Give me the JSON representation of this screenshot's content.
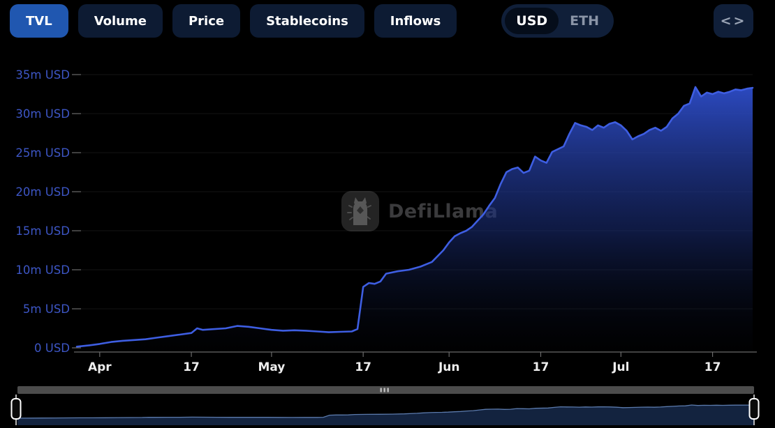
{
  "toolbar": {
    "tabs": [
      {
        "label": "TVL",
        "active": true
      },
      {
        "label": "Volume",
        "active": false
      },
      {
        "label": "Price",
        "active": false
      },
      {
        "label": "Stablecoins",
        "active": false
      },
      {
        "label": "Inflows",
        "active": false
      }
    ],
    "currency_toggle": {
      "options": [
        "USD",
        "ETH"
      ],
      "selected": "USD"
    },
    "embed_icon": "<>"
  },
  "watermark": {
    "text": "DefiLlama"
  },
  "colors": {
    "tab_active_bg": "#2057b0",
    "tab_bg": "#0d1b33",
    "toggle_bg": "#101f39",
    "toggle_selected_bg": "#050d1a",
    "line": "#3e5ee2",
    "area_top": "#2e4dc9",
    "area_bottom": "#05080f",
    "grid": "rgba(255,255,255,0.08)",
    "axis": "#6a6a6a",
    "y_label": "#3d56c5",
    "x_label": "#ededed",
    "nav_fill": "#13233f",
    "nav_line": "#5b7aac",
    "scrollbar": "#4c4c4c",
    "scrollbar_grip": "#bdbdbd",
    "handle": "#ffffff"
  },
  "chart_data": {
    "type": "area",
    "title": "TVL",
    "unit": "USD",
    "ylim": [
      0,
      35
    ],
    "grid": true,
    "legend_position": "none",
    "y_ticks": [
      {
        "label": "0 USD",
        "value": 0
      },
      {
        "label": "5m USD",
        "value": 5
      },
      {
        "label": "10m USD",
        "value": 10
      },
      {
        "label": "15m USD",
        "value": 15
      },
      {
        "label": "20m USD",
        "value": 20
      },
      {
        "label": "25m USD",
        "value": 25
      },
      {
        "label": "30m USD",
        "value": 30
      },
      {
        "label": "35m USD",
        "value": 35
      }
    ],
    "x_ticks": [
      {
        "label": "Apr",
        "day": 4
      },
      {
        "label": "17",
        "day": 20
      },
      {
        "label": "May",
        "day": 34
      },
      {
        "label": "17",
        "day": 50
      },
      {
        "label": "Jun",
        "day": 65
      },
      {
        "label": "17",
        "day": 81
      },
      {
        "label": "Jul",
        "day": 95
      },
      {
        "label": "17",
        "day": 111
      }
    ],
    "day_span": 118,
    "series_name": "TVL (m USD)",
    "dates": [
      "Mar 28",
      "Mar 30",
      "Apr 1",
      "Apr 3",
      "Apr 5",
      "Apr 7",
      "Apr 9",
      "Apr 11",
      "Apr 13",
      "Apr 15",
      "Apr 17",
      "Apr 18",
      "Apr 19",
      "Apr 21",
      "Apr 23",
      "Apr 25",
      "Apr 27",
      "Apr 29",
      "May 1",
      "May 3",
      "May 5",
      "May 7",
      "May 9",
      "May 11",
      "May 13",
      "May 15",
      "May 16",
      "May 17",
      "May 18",
      "May 19",
      "May 20",
      "May 21",
      "May 23",
      "May 25",
      "May 27",
      "May 29",
      "May 31",
      "Jun 1",
      "Jun 2",
      "Jun 3",
      "Jun 4",
      "Jun 5",
      "Jun 6",
      "Jun 7",
      "Jun 8",
      "Jun 9",
      "Jun 10",
      "Jun 11",
      "Jun 12",
      "Jun 13",
      "Jun 14",
      "Jun 15",
      "Jun 16",
      "Jun 17",
      "Jun 18",
      "Jun 19",
      "Jun 21",
      "Jun 22",
      "Jun 23",
      "Jun 24",
      "Jun 25",
      "Jun 26",
      "Jun 27",
      "Jun 28",
      "Jun 29",
      "Jun 30",
      "Jul 1",
      "Jul 2",
      "Jul 3",
      "Jul 4",
      "Jul 5",
      "Jul 6",
      "Jul 7",
      "Jul 8",
      "Jul 9",
      "Jul 10",
      "Jul 11",
      "Jul 12",
      "Jul 13",
      "Jul 14",
      "Jul 15",
      "Jul 16",
      "Jul 17",
      "Jul 18",
      "Jul 19",
      "Jul 20",
      "Jul 21",
      "Jul 22",
      "Jul 23",
      "Jul 24"
    ],
    "days": [
      0,
      2,
      4,
      6,
      8,
      10,
      12,
      14,
      16,
      18,
      20,
      21,
      22,
      24,
      26,
      28,
      30,
      32,
      34,
      36,
      38,
      40,
      42,
      44,
      46,
      48,
      49,
      50,
      51,
      52,
      53,
      54,
      56,
      58,
      60,
      62,
      64,
      65,
      66,
      67,
      68,
      69,
      70,
      71,
      72,
      73,
      74,
      75,
      76,
      77,
      78,
      79,
      80,
      81,
      82,
      83,
      85,
      86,
      87,
      88,
      89,
      90,
      91,
      92,
      93,
      94,
      95,
      96,
      97,
      98,
      99,
      100,
      101,
      102,
      103,
      104,
      105,
      106,
      107,
      108,
      109,
      110,
      111,
      112,
      113,
      114,
      115,
      116,
      117,
      118
    ],
    "values": [
      0.15,
      0.3,
      0.5,
      0.75,
      0.9,
      1.0,
      1.1,
      1.3,
      1.5,
      1.7,
      1.9,
      2.5,
      2.3,
      2.4,
      2.5,
      2.8,
      2.7,
      2.5,
      2.3,
      2.2,
      2.25,
      2.2,
      2.1,
      2.0,
      2.05,
      2.1,
      2.4,
      7.8,
      8.3,
      8.2,
      8.5,
      9.5,
      9.8,
      10.0,
      10.4,
      11.0,
      12.5,
      13.5,
      14.3,
      14.7,
      15.0,
      15.5,
      16.3,
      17.1,
      18.2,
      19.2,
      21.0,
      22.5,
      22.9,
      23.1,
      22.4,
      22.7,
      24.5,
      24.0,
      23.7,
      25.1,
      25.8,
      27.4,
      28.8,
      28.5,
      28.3,
      27.9,
      28.5,
      28.2,
      28.7,
      28.9,
      28.5,
      27.8,
      26.7,
      27.1,
      27.4,
      27.9,
      28.2,
      27.8,
      28.3,
      29.4,
      30.0,
      31.0,
      31.3,
      33.4,
      32.2,
      32.7,
      32.5,
      32.8,
      32.6,
      32.8,
      33.1,
      33.0,
      33.2,
      33.3
    ]
  },
  "navigator": {
    "window": "full range selected",
    "handle_count": 2
  }
}
